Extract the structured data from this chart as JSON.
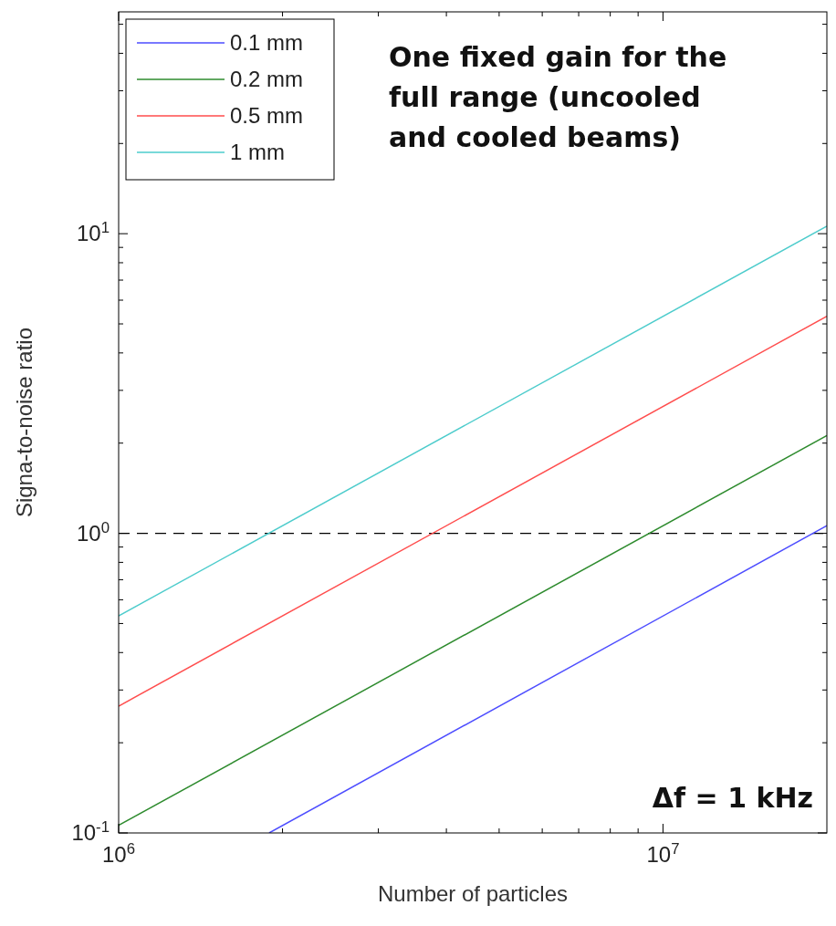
{
  "chart_data": {
    "type": "line",
    "xlabel": "Number of particles",
    "ylabel": "Signa-to-noise ratio",
    "log": "xy",
    "xlim": [
      1000000,
      20000000
    ],
    "ylim": [
      0.1,
      55
    ],
    "xticks": [
      {
        "value": 1000000,
        "label": "10$^{6}$"
      },
      {
        "value": 2000000,
        "label": null
      },
      {
        "value": 3000000,
        "label": null
      },
      {
        "value": 4000000,
        "label": null
      },
      {
        "value": 5000000,
        "label": null
      },
      {
        "value": 6000000,
        "label": null
      },
      {
        "value": 7000000,
        "label": null
      },
      {
        "value": 8000000,
        "label": null
      },
      {
        "value": 9000000,
        "label": null
      },
      {
        "value": 10000000,
        "label": "10$^{7}$"
      }
    ],
    "yticks": [
      {
        "value": 0.1,
        "label": "10$^{-1}$"
      },
      {
        "value": 0.2,
        "label": null
      },
      {
        "value": 0.3,
        "label": null
      },
      {
        "value": 0.4,
        "label": null
      },
      {
        "value": 0.5,
        "label": null
      },
      {
        "value": 0.6,
        "label": null
      },
      {
        "value": 0.7,
        "label": null
      },
      {
        "value": 0.8,
        "label": null
      },
      {
        "value": 0.9,
        "label": null
      },
      {
        "value": 1,
        "label": "10$^{0}$"
      },
      {
        "value": 2,
        "label": null
      },
      {
        "value": 3,
        "label": null
      },
      {
        "value": 4,
        "label": null
      },
      {
        "value": 5,
        "label": null
      },
      {
        "value": 6,
        "label": null
      },
      {
        "value": 7,
        "label": null
      },
      {
        "value": 8,
        "label": null
      },
      {
        "value": 9,
        "label": null
      },
      {
        "value": 10,
        "label": "10$^{1}$"
      },
      {
        "value": 20,
        "label": null
      },
      {
        "value": 30,
        "label": null
      },
      {
        "value": 40,
        "label": null
      },
      {
        "value": 50,
        "label": null
      }
    ],
    "grid": false,
    "legend": "top left",
    "line_style": "solid",
    "series": [
      {
        "name": "0.1 mm",
        "color": "#4d4dff",
        "x": [
          1890000,
          20000000
        ],
        "values": [
          0.1,
          1.06
        ]
      },
      {
        "name": "0.2 mm",
        "color": "#2e8b2e",
        "x": [
          1000000,
          20000000
        ],
        "values": [
          0.106,
          2.12
        ]
      },
      {
        "name": "0.5 mm",
        "color": "#ff4d4d",
        "x": [
          1000000,
          20000000
        ],
        "values": [
          0.265,
          5.3
        ]
      },
      {
        "name": "1 mm",
        "color": "#4dcccc",
        "x": [
          1000000,
          20000000
        ],
        "values": [
          0.53,
          10.6
        ]
      }
    ],
    "ref_lines": [
      {
        "axis": "y",
        "value": 1,
        "line_style": "dashed",
        "color": "#000000"
      }
    ],
    "annotations": [
      "One fixed gain for the full range (uncooled and cooled beams)",
      "Δf = 1 kHz"
    ]
  }
}
